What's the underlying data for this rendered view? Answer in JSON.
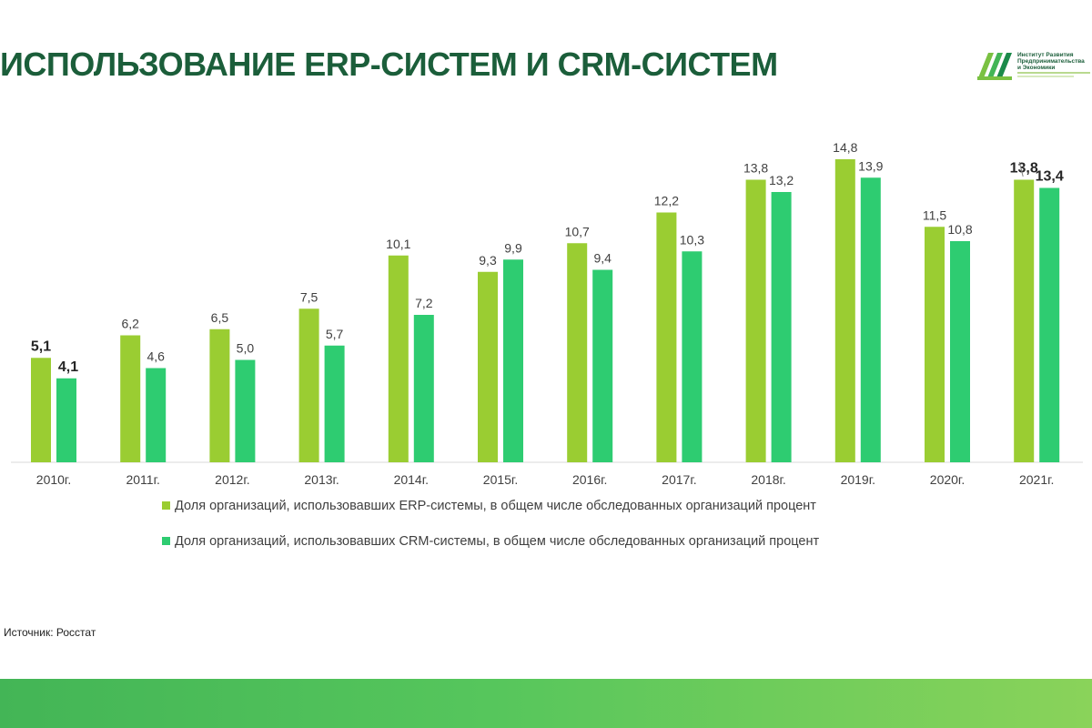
{
  "header": {
    "title": "ИСПОЛЬЗОВАНИЕ ERP-СИСТЕМ И CRM-СИСТЕМ",
    "logo_lines": [
      "Институт Развития",
      "Предпринимательства",
      "и Экономики"
    ]
  },
  "source": "Источник: Росстат",
  "colors": {
    "erp": "#9acd32",
    "crm": "#2ecc71",
    "title": "#1b5e3a",
    "footer": "#4cbd5a"
  },
  "chart_data": {
    "type": "bar",
    "categories": [
      "2010г.",
      "2011г.",
      "2012г.",
      "2013г.",
      "2014г.",
      "2015г.",
      "2016г.",
      "2017г.",
      "2018г.",
      "2019г.",
      "2020г.",
      "2021г."
    ],
    "series": [
      {
        "name": "Доля организаций, использовавших ERP-системы, в общем числе обследованных организаций  процент",
        "values": [
          5.1,
          6.2,
          6.5,
          7.5,
          10.1,
          9.3,
          10.7,
          12.2,
          13.8,
          14.8,
          11.5,
          13.8
        ],
        "labels": [
          "5,1",
          "6,2",
          "6,5",
          "7,5",
          "10,1",
          "9,3",
          "10,7",
          "12,2",
          "13,8",
          "14,8",
          "11,5",
          "13,8"
        ]
      },
      {
        "name": "Доля организаций, использовавших CRM-системы, в общем числе обследованных организаций  процент",
        "values": [
          4.1,
          4.6,
          5.0,
          5.7,
          7.2,
          9.9,
          9.4,
          10.3,
          13.2,
          13.9,
          10.8,
          13.4
        ],
        "labels": [
          "4,1",
          "4,6",
          "5,0",
          "5,7",
          "7,2",
          "9,9",
          "9,4",
          "10,3",
          "13,2",
          "13,9",
          "10,8",
          "13,4"
        ]
      }
    ],
    "bold_label_categories": [
      "2010г.",
      "2021г."
    ],
    "ylim": [
      0,
      16
    ],
    "grid": false,
    "legend_position": "bottom"
  }
}
